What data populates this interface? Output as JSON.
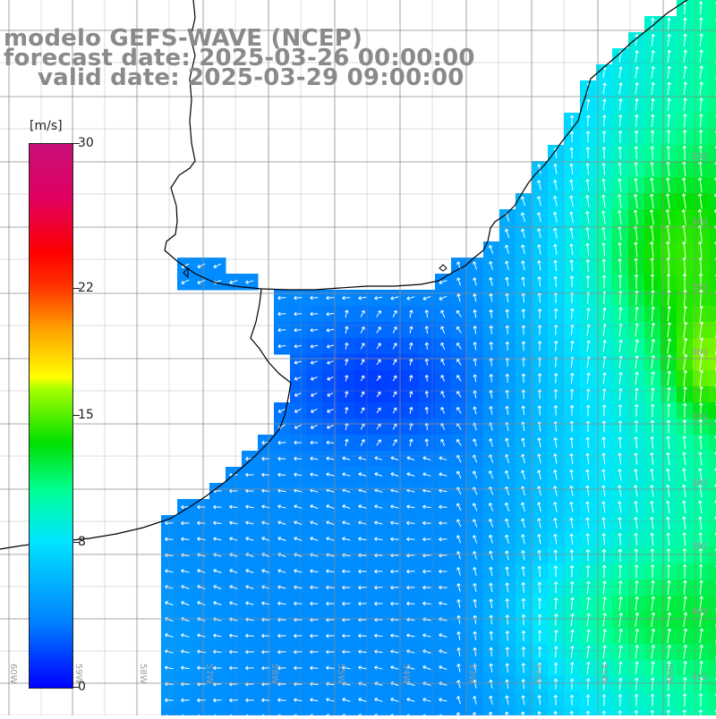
{
  "title": {
    "line1": "modelo GEFS-WAVE (NCEP)",
    "line2": "forecast date: 2025-03-26 00:00:00",
    "line3": "valid date: 2025-03-29 09:00:00"
  },
  "colorbar": {
    "unit": "[m/s]",
    "min": 0,
    "max": 30,
    "ticks": [
      "30",
      "22",
      "15",
      "8",
      "0"
    ],
    "colors": [
      "#0000ff",
      "#0080ff",
      "#00e5ff",
      "#00ff9a",
      "#00e000",
      "#ffff00",
      "#ffa000",
      "#ff0000",
      "#c8107a"
    ]
  },
  "lat_labels": [
    "33S",
    "34S",
    "35S",
    "36S",
    "37S",
    "38S",
    "39S",
    "40S",
    "41S"
  ],
  "lon_labels": [
    "60W",
    "59W",
    "58W",
    "57W",
    "56W",
    "55W",
    "54W",
    "53W",
    "52W",
    "51W",
    "50W"
  ],
  "colors": {
    "land": "#ffffff",
    "grid": "#8c8c8c",
    "coast": "#000000",
    "arrow": "#ffffff",
    "title": "#8a8a8a"
  }
}
